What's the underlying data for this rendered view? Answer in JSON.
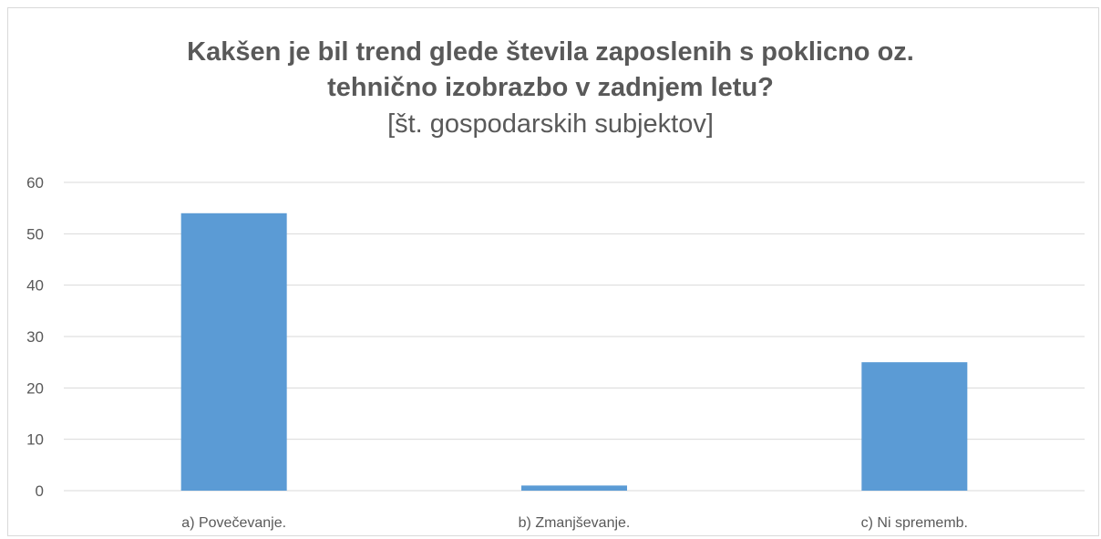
{
  "chart_data": {
    "type": "bar",
    "title_lines": [
      "Kakšen je bil trend glede števila zaposlenih s poklicno oz.",
      "tehnično izobrazbo v zadnjem letu?"
    ],
    "subtitle": "[št. gospodarskih subjektov]",
    "categories": [
      "a) Povečevanje.",
      "b) Zmanjševanje.",
      "c) Ni sprememb."
    ],
    "values": [
      54,
      1,
      25
    ],
    "ylim": [
      0,
      60
    ],
    "yticks": [
      0,
      10,
      20,
      30,
      40,
      50,
      60
    ],
    "grid": true,
    "legend": "none",
    "bar_color": "#5b9bd5",
    "grid_color": "#d9d9d9"
  }
}
